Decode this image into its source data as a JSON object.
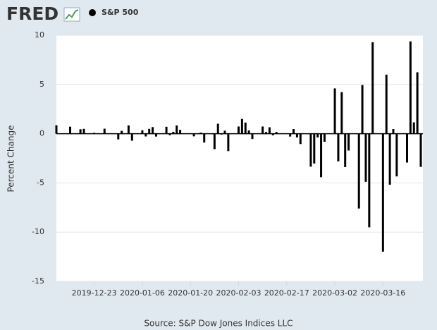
{
  "logo": "FRED",
  "chart_data": {
    "type": "bar",
    "series": [
      {
        "name": "S&P 500",
        "color": "#000000",
        "values": [
          0.86,
          0.01,
          0.71,
          0.03,
          -0.04,
          0.45,
          0.49,
          0.09,
          -0.02,
          0.51,
          0.03,
          -0.58,
          0.29,
          0.84,
          -0.71,
          0.35,
          -0.28,
          0.49,
          0.67,
          -0.29,
          0.7,
          -0.15,
          0.19,
          0.84,
          0.39,
          -0.27,
          0.03,
          0.11,
          -0.9,
          -1.57,
          1.01,
          -0.09,
          0.31,
          -1.77,
          0.73,
          1.5,
          1.13,
          0.33,
          -0.54,
          0.73,
          0.17,
          0.65,
          -0.16,
          0.18,
          -0.29,
          0.47,
          -0.38,
          -1.05,
          -3.35,
          -3.03,
          -0.38,
          -4.42,
          -0.82,
          4.6,
          -2.81,
          4.22,
          -3.39,
          -1.71,
          -7.6,
          4.94,
          -4.89,
          -9.51,
          9.29,
          -11.98,
          6.0,
          -5.18,
          0.47,
          -4.34,
          -2.93,
          9.38,
          1.15,
          6.24,
          -3.37
        ]
      }
    ],
    "x": [
      "2019-12-12",
      "2019-12-13",
      "2019-12-16",
      "2019-12-17",
      "2019-12-18",
      "2019-12-19",
      "2019-12-20",
      "2019-12-23",
      "2019-12-24",
      "2019-12-26",
      "2019-12-27",
      "2019-12-30",
      "2019-12-31",
      "2020-01-02",
      "2020-01-03",
      "2020-01-06",
      "2020-01-07",
      "2020-01-08",
      "2020-01-09",
      "2020-01-10",
      "2020-01-13",
      "2020-01-14",
      "2020-01-15",
      "2020-01-16",
      "2020-01-17",
      "2020-01-21",
      "2020-01-22",
      "2020-01-23",
      "2020-01-24",
      "2020-01-27",
      "2020-01-28",
      "2020-01-29",
      "2020-01-30",
      "2020-01-31",
      "2020-02-03",
      "2020-02-04",
      "2020-02-05",
      "2020-02-06",
      "2020-02-07",
      "2020-02-10",
      "2020-02-11",
      "2020-02-12",
      "2020-02-13",
      "2020-02-14",
      "2020-02-18",
      "2020-02-19",
      "2020-02-20",
      "2020-02-21",
      "2020-02-24",
      "2020-02-25",
      "2020-02-26",
      "2020-02-27",
      "2020-02-28",
      "2020-03-02",
      "2020-03-03",
      "2020-03-04",
      "2020-03-05",
      "2020-03-06",
      "2020-03-09",
      "2020-03-10",
      "2020-03-11",
      "2020-03-12",
      "2020-03-13",
      "2020-03-16",
      "2020-03-17",
      "2020-03-18",
      "2020-03-19",
      "2020-03-20",
      "2020-03-23",
      "2020-03-24",
      "2020-03-25",
      "2020-03-26",
      "2020-03-27"
    ],
    "xlim": [
      "2019-12-12",
      "2020-03-27"
    ],
    "xticks": [
      "2019-12-23",
      "2020-01-06",
      "2020-01-20",
      "2020-02-03",
      "2020-02-17",
      "2020-03-02",
      "2020-03-16"
    ],
    "ylabel": "Percent Change",
    "ylim": [
      -15,
      10
    ],
    "yticks": [
      -15,
      -10,
      -5,
      0,
      5,
      10
    ],
    "grid": true,
    "source": "Source: S&P Dow Jones Indices LLC"
  }
}
